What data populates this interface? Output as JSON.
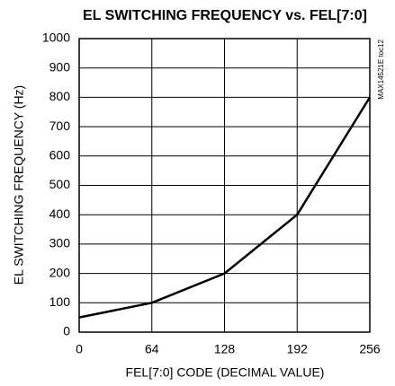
{
  "chart_data": {
    "type": "line",
    "title": "EL SWITCHING FREQUENCY vs. FEL[7:0]",
    "x_label": "FEL[7:0] CODE (DECIMAL VALUE)",
    "y_label": "EL SWITCHING FREQUENCY (Hz)",
    "annotation": "MAX14521E toc12",
    "x": [
      0,
      64,
      128,
      192,
      256
    ],
    "series": [
      {
        "name": "EL switching frequency",
        "color": "#000000",
        "values": [
          50,
          100,
          200,
          400,
          800
        ]
      }
    ],
    "xlim": [
      0,
      256
    ],
    "xticks": [
      0,
      64,
      128,
      192,
      256
    ],
    "ylim": [
      0,
      1000
    ],
    "yticks": [
      0,
      100,
      200,
      300,
      400,
      500,
      600,
      700,
      800,
      900,
      1000
    ],
    "grid": true
  }
}
